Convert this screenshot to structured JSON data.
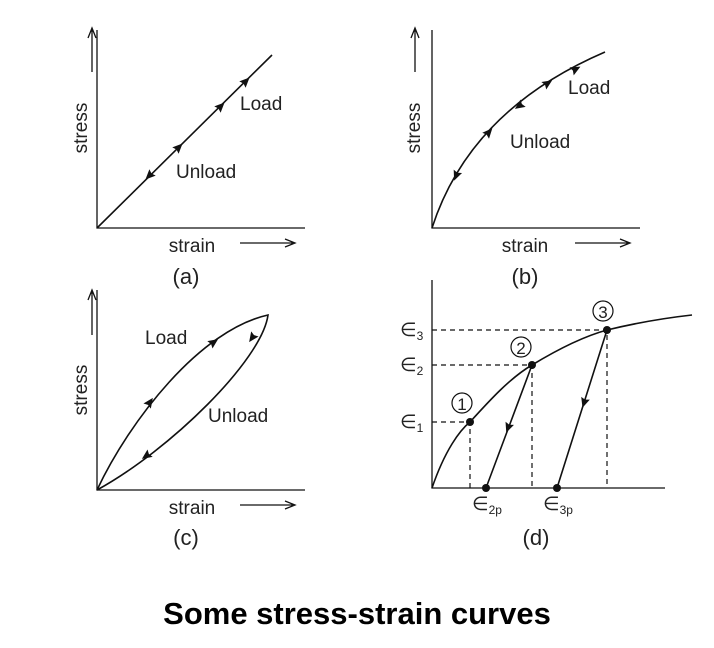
{
  "title": "Some stress-strain curves",
  "panels": [
    {
      "caption": "(a)",
      "x_label": "strain",
      "y_label": "stress",
      "annotations": [
        "Load",
        "Unload"
      ]
    },
    {
      "caption": "(b)",
      "x_label": "strain",
      "y_label": "stress",
      "annotations": [
        "Load",
        "Unload"
      ]
    },
    {
      "caption": "(c)",
      "x_label": "strain",
      "y_label": "stress",
      "annotations": [
        "Load",
        "Unload"
      ]
    },
    {
      "caption": "(d)",
      "points": [
        "1",
        "2",
        "3"
      ],
      "y_marks": [
        {
          "symbol": "∈",
          "subscript": "1"
        },
        {
          "symbol": "∈",
          "subscript": "2"
        },
        {
          "symbol": "∈",
          "subscript": "3"
        }
      ],
      "x_marks": [
        {
          "symbol": "∈",
          "subscript": "2p"
        },
        {
          "symbol": "∈",
          "subscript": "3p"
        }
      ]
    }
  ]
}
